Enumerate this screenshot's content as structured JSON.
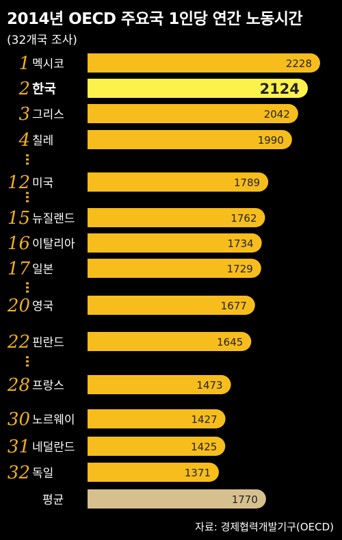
{
  "title": "2014년 OECD 주요국 1인당 연간 노동시간",
  "subtitle": "(32개국 조사)",
  "source": "자료: 경제협력개발기구(OECD)",
  "colors": {
    "bar": "#f7bd1c",
    "highlight": "#fdf24b",
    "average": "#d6c08e",
    "rank": "#f0b020",
    "label": "#ffffff",
    "value_text": "#222222",
    "ellipsis": "#f0b020"
  },
  "chart_data": {
    "type": "bar",
    "orientation": "horizontal",
    "title": "2014년 OECD 주요국 1인당 연간 노동시간",
    "subtitle": "(32개국 조사)",
    "rows": [
      {
        "rank": "1",
        "country": "멕시코",
        "value": 2228
      },
      {
        "rank": "2",
        "country": "한국",
        "value": 2124,
        "highlight": true
      },
      {
        "rank": "3",
        "country": "그리스",
        "value": 2042
      },
      {
        "rank": "4",
        "country": "칠레",
        "value": 1990
      },
      {
        "rank": "12",
        "country": "미국",
        "value": 1789
      },
      {
        "rank": "15",
        "country": "뉴질랜드",
        "value": 1762
      },
      {
        "rank": "16",
        "country": "이탈리아",
        "value": 1734
      },
      {
        "rank": "17",
        "country": "일본",
        "value": 1729
      },
      {
        "rank": "20",
        "country": "영국",
        "value": 1677
      },
      {
        "rank": "22",
        "country": "핀란드",
        "value": 1645
      },
      {
        "rank": "28",
        "country": "프랑스",
        "value": 1473
      },
      {
        "rank": "30",
        "country": "노르웨이",
        "value": 1427
      },
      {
        "rank": "31",
        "country": "네덜란드",
        "value": 1425
      },
      {
        "rank": "32",
        "country": "독일",
        "value": 1371
      },
      {
        "rank": "",
        "country": "평균",
        "value": 1770,
        "average": true
      }
    ],
    "gaps_after_rank": [
      "4",
      "12",
      "17",
      "22"
    ],
    "xlim": [
      0,
      2228
    ],
    "grid": false,
    "legend": "none"
  }
}
